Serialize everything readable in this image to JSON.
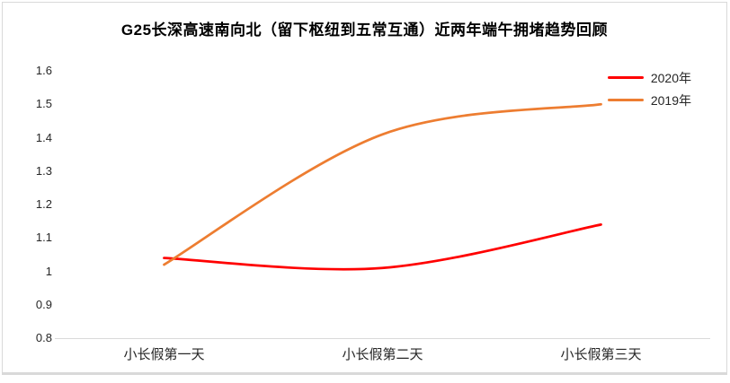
{
  "window": {
    "background": "#ffffff",
    "border_color": "#d9d9d9"
  },
  "chart_data": {
    "type": "line",
    "title": "G25长深高速南向北（留下枢纽到五常互通）近两年端午拥堵趋势回顾",
    "categories": [
      "小长假第一天",
      "小长假第二天",
      "小长假第三天"
    ],
    "series": [
      {
        "name": "2020年",
        "color": "#ff0000",
        "values": [
          1.04,
          1.01,
          1.14
        ]
      },
      {
        "name": "2019年",
        "color": "#ed7d31",
        "values": [
          1.02,
          1.41,
          1.5
        ]
      }
    ],
    "xlabel": "",
    "ylabel": "",
    "ylim": [
      0.8,
      1.6
    ],
    "yticks": [
      1.6,
      1.5,
      1.4,
      1.3,
      1.2,
      1.1,
      1,
      0.9,
      0.8
    ],
    "grid": false,
    "smooth_lines": true,
    "legend_position": "top-right"
  }
}
